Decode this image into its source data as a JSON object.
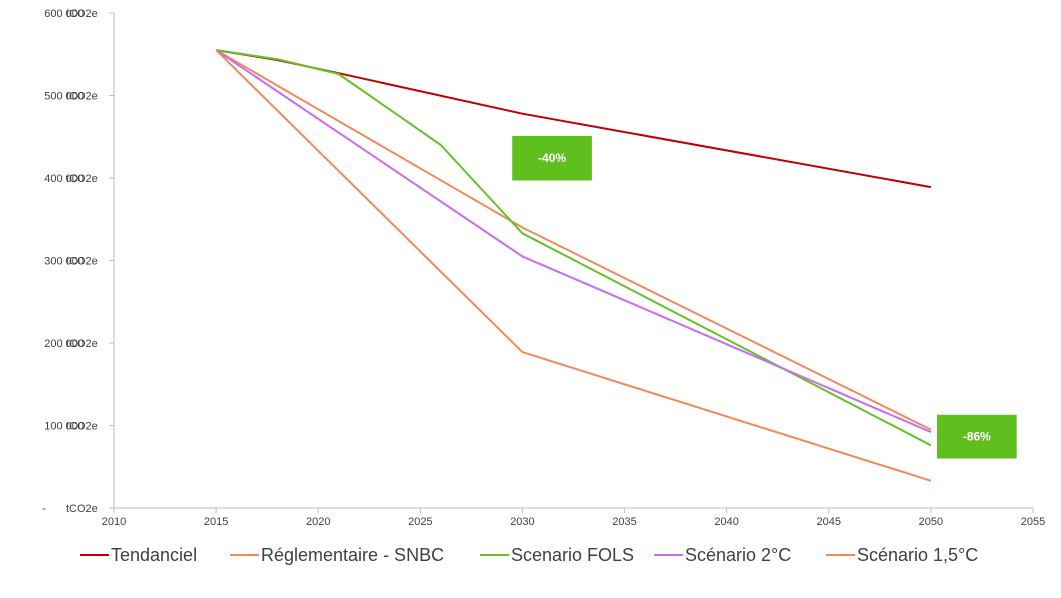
{
  "chart_data": {
    "type": "line",
    "y_unit": "tCO2e",
    "xlim": [
      2010,
      2055
    ],
    "ylim": [
      0,
      600000
    ],
    "x_ticks": [
      "2010",
      "2015",
      "2020",
      "2025",
      "2030",
      "2035",
      "2040",
      "2045",
      "2050",
      "2055"
    ],
    "y_ticks": [
      {
        "value": 0,
        "label": "-"
      },
      {
        "value": 100000,
        "label": "100 000"
      },
      {
        "value": 200000,
        "label": "200 000"
      },
      {
        "value": 300000,
        "label": "300 000"
      },
      {
        "value": 400000,
        "label": "400 000"
      },
      {
        "value": 500000,
        "label": "500 000"
      },
      {
        "value": 600000,
        "label": "600 000"
      }
    ],
    "grid": false,
    "legend_position": "bottom",
    "series": [
      {
        "name": "Tendanciel",
        "color": "#c00000",
        "points": [
          [
            2015,
            555000
          ],
          [
            2018,
            543000
          ],
          [
            2021,
            527000
          ],
          [
            2030,
            478000
          ],
          [
            2050,
            389000
          ]
        ]
      },
      {
        "name": "Réglementaire - SNBC",
        "color": "#f08a5d",
        "points": [
          [
            2015,
            555000
          ],
          [
            2030,
            340000
          ],
          [
            2050,
            95000
          ]
        ]
      },
      {
        "name": "Scenario FOLS",
        "color": "#66c222",
        "points": [
          [
            2015,
            555000
          ],
          [
            2018,
            544000
          ],
          [
            2021,
            526000
          ],
          [
            2026,
            440000
          ],
          [
            2030,
            333000
          ],
          [
            2050,
            76000
          ]
        ]
      },
      {
        "name": "Scénario 2°C",
        "color": "#c86cf2",
        "points": [
          [
            2015,
            555000
          ],
          [
            2030,
            305000
          ],
          [
            2050,
            92000
          ]
        ]
      },
      {
        "name": "Scénario 1,5°C",
        "color": "#f08a5d",
        "points": [
          [
            2015,
            555000
          ],
          [
            2030,
            189000
          ],
          [
            2050,
            33000
          ]
        ]
      }
    ],
    "annotations": [
      {
        "text": "-40%",
        "color": "#5fbf1e",
        "x0": 2029.5,
        "x1": 2033.4,
        "y0": 397000,
        "y1": 451000
      },
      {
        "text": "-86%",
        "color": "#5fbf1e",
        "x0": 2050.3,
        "x1": 2054.2,
        "y0": 60000,
        "y1": 113000
      }
    ]
  }
}
